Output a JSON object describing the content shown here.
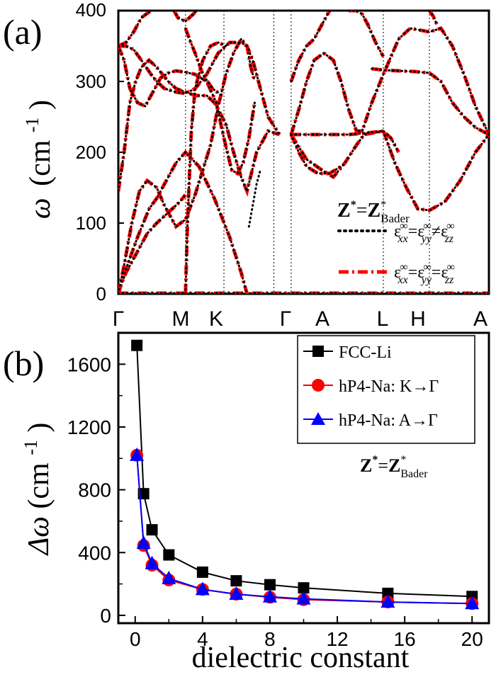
{
  "chart_data": [
    {
      "panel_label": "(a)",
      "type": "line",
      "ylabel_symbol": "ω",
      "ylabel_unit": "(cm",
      "ylabel_exp": "-1",
      "ylabel_close": ")",
      "ylim": [
        0,
        400
      ],
      "yticks": [
        "0",
        "100",
        "200",
        "300",
        "400"
      ],
      "path_labels": [
        "Γ",
        "M",
        "K",
        "Γ",
        "A",
        "L",
        "H",
        "A"
      ],
      "annotation": {
        "z": "Z",
        "star": "*",
        "eq": "=",
        "zb": "Z",
        "zb_star": "*",
        "zb_sub": "Bader"
      },
      "legend": [
        {
          "style": "dotted",
          "color": "#000000",
          "eps": "ε",
          "sup": "∞",
          "sub1": "xx",
          "rel1": "=",
          "sub2": "yy",
          "rel2": "≠",
          "sub3": "zz"
        },
        {
          "style": "dashdot",
          "color": "#ff0000",
          "eps": "ε",
          "sup": "∞",
          "sub1": "xx",
          "rel1": "=",
          "sub2": "yy",
          "rel2": "=",
          "sub3": "zz"
        }
      ],
      "branches": [
        [
          [
            0,
            0
          ],
          [
            0.05,
            10
          ],
          [
            0.2,
            30
          ],
          [
            0.5,
            60
          ],
          [
            0.75,
            85
          ],
          [
            1,
            100
          ],
          [
            1.3,
            115
          ],
          [
            1.6,
            130
          ],
          [
            1.75,
            140
          ]
        ],
        [
          [
            0,
            0
          ],
          [
            0.2,
            35
          ],
          [
            0.5,
            80
          ],
          [
            0.8,
            120
          ],
          [
            1,
            135
          ],
          [
            1.2,
            155
          ],
          [
            1.5,
            185
          ],
          [
            1.75,
            200
          ],
          [
            2.1,
            180
          ],
          [
            2.5,
            135
          ],
          [
            2.9,
            80
          ],
          [
            3.2,
            30
          ],
          [
            3.35,
            0
          ]
        ],
        [
          [
            0,
            0
          ],
          [
            0.15,
            40
          ],
          [
            0.35,
            100
          ],
          [
            0.55,
            145
          ],
          [
            0.75,
            160
          ],
          [
            1,
            150
          ],
          [
            1.2,
            125
          ],
          [
            1.5,
            95
          ],
          [
            1.75,
            105
          ],
          [
            2,
            140
          ],
          [
            2.4,
            210
          ],
          [
            2.6,
            265
          ],
          [
            2.8,
            310
          ],
          [
            3,
            340
          ],
          [
            3.2,
            360
          ],
          [
            3.35,
            350
          ],
          [
            3.45,
            320
          ],
          [
            3.55,
            300
          ]
        ],
        [
          [
            0,
            145
          ],
          [
            0.15,
            200
          ],
          [
            0.3,
            270
          ],
          [
            0.45,
            300
          ],
          [
            0.6,
            320
          ],
          [
            0.8,
            330
          ],
          [
            1,
            320
          ],
          [
            1.3,
            300
          ],
          [
            1.5,
            290
          ],
          [
            1.75,
            285
          ],
          [
            2,
            280
          ],
          [
            2.3,
            280
          ],
          [
            2.5,
            270
          ],
          [
            2.8,
            240
          ],
          [
            3.0,
            200
          ],
          [
            3.2,
            165
          ],
          [
            3.35,
            145
          ],
          [
            3.6,
            200
          ],
          [
            3.9,
            230
          ],
          [
            4.2,
            225
          ]
        ],
        [
          [
            0,
            350
          ],
          [
            0.2,
            350
          ],
          [
            0.4,
            345
          ],
          [
            0.6,
            330
          ],
          [
            0.85,
            310
          ],
          [
            1,
            300
          ],
          [
            1.2,
            290
          ],
          [
            1.5,
            285
          ],
          [
            1.75,
            283
          ],
          [
            2,
            290
          ],
          [
            2.3,
            310
          ],
          [
            2.6,
            340
          ],
          [
            2.9,
            355
          ],
          [
            3.2,
            355
          ],
          [
            3.35,
            350
          ],
          [
            3.5,
            330
          ],
          [
            3.7,
            290
          ],
          [
            3.9,
            250
          ],
          [
            4.2,
            225
          ]
        ],
        [
          [
            0,
            350
          ],
          [
            0.2,
            355
          ],
          [
            0.4,
            370
          ],
          [
            0.6,
            390
          ],
          [
            0.85,
            400
          ]
        ],
        [
          [
            0,
            350
          ],
          [
            0.15,
            330
          ],
          [
            0.3,
            290
          ],
          [
            0.5,
            270
          ],
          [
            0.7,
            265
          ],
          [
            0.9,
            285
          ],
          [
            1.1,
            305
          ],
          [
            1.3,
            312
          ],
          [
            1.5,
            315
          ],
          [
            1.75,
            313
          ],
          [
            2,
            310
          ],
          [
            2.3,
            300
          ],
          [
            2.55,
            270
          ],
          [
            2.75,
            220
          ],
          [
            2.95,
            175
          ],
          [
            3.1,
            170
          ],
          [
            3.25,
            185
          ],
          [
            3.4,
            220
          ],
          [
            3.55,
            270
          ]
        ],
        [
          [
            1.75,
            0
          ],
          [
            1.75,
            0
          ],
          [
            1.8,
            100
          ],
          [
            1.9,
            230
          ],
          [
            2.0,
            290
          ],
          [
            2.2,
            330
          ],
          [
            2.4,
            350
          ],
          [
            2.6,
            355
          ],
          [
            2.8,
            350
          ]
        ],
        [
          [
            1.45,
            400
          ],
          [
            1.55,
            390
          ],
          [
            1.75,
            385
          ],
          [
            1.95,
            395
          ],
          [
            2.05,
            400
          ]
        ],
        [
          [
            1.75,
            375
          ],
          [
            1.85,
            360
          ],
          [
            2.0,
            340
          ],
          [
            2.2,
            310
          ],
          [
            2.45,
            290
          ],
          [
            2.7,
            280
          ]
        ],
        [
          [
            4.5,
            225
          ],
          [
            4.9,
            190
          ],
          [
            5.3,
            175
          ],
          [
            5.6,
            165
          ],
          [
            5.9,
            185
          ],
          [
            6.2,
            210
          ],
          [
            6.4,
            225
          ],
          [
            6.9,
            230
          ]
        ],
        [
          [
            4.5,
            225
          ],
          [
            5.0,
            225
          ],
          [
            5.5,
            225
          ],
          [
            6.0,
            225
          ],
          [
            6.6,
            228
          ],
          [
            6.9,
            230
          ],
          [
            7.1,
            220
          ],
          [
            7.3,
            200
          ]
        ],
        [
          [
            6.9,
            230
          ],
          [
            7.2,
            185
          ],
          [
            7.5,
            150
          ],
          [
            7.8,
            120
          ],
          [
            8.1,
            118
          ],
          [
            8.5,
            130
          ],
          [
            8.9,
            160
          ],
          [
            9.3,
            200
          ],
          [
            9.65,
            225
          ]
        ],
        [
          [
            4.5,
            225
          ],
          [
            4.7,
            260
          ],
          [
            4.9,
            300
          ],
          [
            5.1,
            330
          ],
          [
            5.35,
            340
          ],
          [
            5.6,
            330
          ],
          [
            5.8,
            300
          ],
          [
            6.0,
            260
          ],
          [
            6.2,
            230
          ],
          [
            6.35,
            230
          ],
          [
            6.6,
            270
          ],
          [
            6.9,
            310
          ],
          [
            7.3,
            360
          ],
          [
            7.6,
            375
          ],
          [
            8.1,
            370
          ],
          [
            8.4,
            375
          ],
          [
            8.7,
            350
          ],
          [
            9.0,
            310
          ],
          [
            9.3,
            265
          ],
          [
            9.65,
            225
          ]
        ],
        [
          [
            4.5,
            225
          ],
          [
            4.7,
            200
          ],
          [
            4.9,
            180
          ],
          [
            5.2,
            170
          ],
          [
            5.5,
            170
          ],
          [
            5.8,
            180
          ]
        ],
        [
          [
            4.5,
            300
          ],
          [
            4.7,
            330
          ],
          [
            4.9,
            350
          ],
          [
            5.1,
            360
          ],
          [
            5.3,
            380
          ],
          [
            5.5,
            400
          ]
        ],
        [
          [
            6.6,
            318
          ],
          [
            6.9,
            316
          ],
          [
            7.3,
            315
          ],
          [
            7.7,
            314
          ],
          [
            8.1,
            312
          ],
          [
            8.4,
            300
          ],
          [
            8.7,
            270
          ],
          [
            9.0,
            250
          ],
          [
            9.3,
            235
          ],
          [
            9.65,
            225
          ]
        ],
        [
          [
            8.1,
            400
          ],
          [
            8.2,
            392
          ],
          [
            8.3,
            380
          ]
        ],
        [
          [
            6.0,
            400
          ],
          [
            6.2,
            400
          ],
          [
            6.35,
            395
          ],
          [
            6.5,
            380
          ],
          [
            6.7,
            355
          ],
          [
            6.9,
            335
          ]
        ]
      ],
      "dotted_extra": [
        [
          3.4,
          95
        ],
        [
          3.45,
          110
        ],
        [
          3.5,
          125
        ],
        [
          3.55,
          140
        ],
        [
          3.6,
          155
        ],
        [
          3.65,
          165
        ],
        [
          3.7,
          175
        ]
      ],
      "segment_ends": [
        0,
        1.75,
        2.75,
        4.05,
        4.5,
        6.9,
        8.1,
        9.65
      ]
    },
    {
      "panel_label": "(b)",
      "type": "line",
      "xlabel": "dielectric constant",
      "ylabel_symbol": "Δω",
      "ylabel_unit": "(cm",
      "ylabel_exp": "-1",
      "ylabel_close": ")",
      "xlim": [
        -1,
        21
      ],
      "ylim": [
        -50,
        1800
      ],
      "xticks": [
        "0",
        "4",
        "8",
        "12",
        "16",
        "20"
      ],
      "yticks": [
        "0",
        "400",
        "800",
        "1200",
        "1600"
      ],
      "annotation": {
        "z": "Z",
        "star": "*",
        "eq": "=",
        "zb": "Z",
        "zb_star": "*",
        "zb_sub": "Bader"
      },
      "legend_position": "top-right",
      "series": [
        {
          "name": "FCC-Li",
          "color": "#000000",
          "marker": "square",
          "x": [
            0.1,
            0.5,
            1,
            2,
            4,
            6,
            8,
            10,
            15,
            20
          ],
          "y": [
            1720,
            775,
            545,
            385,
            275,
            220,
            195,
            175,
            140,
            120
          ]
        },
        {
          "name": "hP4-Na: K→Γ",
          "color": "#ff0000",
          "marker": "circle",
          "x": [
            0.1,
            0.5,
            1,
            2,
            4,
            6,
            8,
            10,
            15,
            20
          ],
          "y": [
            1020,
            445,
            320,
            225,
            165,
            135,
            115,
            100,
            85,
            75
          ]
        },
        {
          "name": "hP4-Na: A→Γ",
          "color": "#0000ff",
          "marker": "triangle",
          "x": [
            0.1,
            0.5,
            1,
            2,
            4,
            6,
            8,
            10,
            15,
            20
          ],
          "y": [
            1020,
            460,
            330,
            235,
            165,
            135,
            118,
            105,
            85,
            75
          ]
        }
      ]
    }
  ]
}
